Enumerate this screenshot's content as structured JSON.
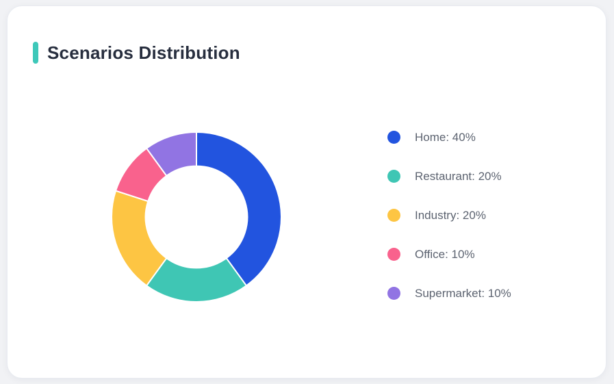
{
  "card": {
    "title": "Scenarios Distribution",
    "accent_color": "#3ec8b9"
  },
  "chart_data": {
    "type": "pie",
    "subtype": "donut",
    "title": "Scenarios Distribution",
    "legend_position": "right",
    "start_angle_deg": 0,
    "direction": "clockwise",
    "inner_radius_ratio": 0.6,
    "slices": [
      {
        "label": "Home",
        "value": 40,
        "color": "#2254df"
      },
      {
        "label": "Restaurant",
        "value": 20,
        "color": "#3fc6b4"
      },
      {
        "label": "Industry",
        "value": 20,
        "color": "#fdc543"
      },
      {
        "label": "Office",
        "value": 10,
        "color": "#f9628d"
      },
      {
        "label": "Supermarket",
        "value": 10,
        "color": "#9174e3"
      }
    ],
    "value_suffix": "%",
    "label_separator": ": "
  }
}
